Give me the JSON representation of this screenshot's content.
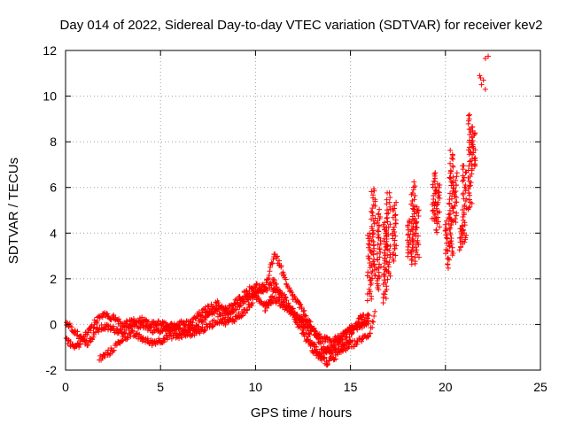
{
  "chart_data": {
    "type": "scatter",
    "title": "Day 014 of 2022, Sidereal Day-to-day VTEC variation (SDTVAR) for receiver kev2",
    "xlabel": "GPS time / hours",
    "ylabel": "SDTVAR / TECUs",
    "xlim": [
      0,
      25
    ],
    "ylim": [
      -2,
      12
    ],
    "x_ticks": [
      0,
      5,
      10,
      15,
      20,
      25
    ],
    "y_ticks": [
      -2,
      0,
      2,
      4,
      6,
      8,
      10,
      12
    ],
    "grid": true,
    "marker": "+",
    "series": [
      {
        "name": "kev2",
        "color": "#ff0000",
        "trace_segments": [
          [
            [
              0.0,
              -0.6
            ],
            [
              0.3,
              -0.9
            ],
            [
              0.6,
              -1.0
            ],
            [
              1.0,
              -0.5
            ],
            [
              1.3,
              -0.2
            ],
            [
              1.7,
              0.2
            ],
            [
              2.0,
              0.4
            ],
            [
              2.5,
              0.3
            ],
            [
              3.0,
              0.0
            ],
            [
              3.5,
              0.1
            ],
            [
              4.0,
              0.2
            ],
            [
              4.5,
              0.0
            ],
            [
              5.0,
              0.1
            ],
            [
              5.5,
              -0.2
            ],
            [
              6.0,
              -0.3
            ],
            [
              6.5,
              -0.2
            ],
            [
              7.0,
              0.0
            ],
            [
              7.5,
              0.4
            ],
            [
              8.0,
              0.6
            ],
            [
              8.5,
              0.4
            ],
            [
              9.0,
              0.8
            ],
            [
              9.5,
              1.1
            ],
            [
              10.0,
              1.4
            ],
            [
              10.5,
              1.5
            ],
            [
              11.0,
              1.9
            ],
            [
              11.3,
              1.2
            ],
            [
              11.7,
              0.7
            ],
            [
              12.0,
              0.4
            ],
            [
              12.5,
              0.2
            ],
            [
              13.0,
              -0.3
            ],
            [
              13.5,
              -0.6
            ],
            [
              14.0,
              -0.8
            ],
            [
              14.5,
              -0.5
            ],
            [
              15.0,
              -0.3
            ],
            [
              15.5,
              -0.1
            ],
            [
              16.0,
              0.2
            ]
          ],
          [
            [
              0.0,
              0.1
            ],
            [
              0.4,
              -0.2
            ],
            [
              0.8,
              -0.6
            ],
            [
              1.2,
              -0.8
            ],
            [
              1.6,
              -0.3
            ],
            [
              2.0,
              -0.1
            ],
            [
              2.5,
              -0.2
            ],
            [
              3.0,
              -0.3
            ],
            [
              3.5,
              -0.1
            ],
            [
              4.0,
              0.0
            ],
            [
              4.5,
              -0.2
            ],
            [
              5.0,
              -0.3
            ],
            [
              5.5,
              -0.1
            ],
            [
              6.0,
              0.1
            ],
            [
              6.5,
              0.0
            ],
            [
              7.0,
              0.4
            ],
            [
              7.5,
              0.7
            ],
            [
              8.0,
              0.9
            ],
            [
              8.5,
              0.6
            ],
            [
              9.0,
              1.0
            ],
            [
              9.5,
              1.4
            ],
            [
              10.0,
              1.7
            ],
            [
              10.5,
              1.6
            ],
            [
              11.0,
              3.1
            ],
            [
              11.3,
              2.6
            ],
            [
              11.7,
              1.6
            ],
            [
              12.0,
              1.2
            ],
            [
              12.5,
              0.6
            ],
            [
              13.0,
              -0.2
            ],
            [
              13.5,
              -1.0
            ],
            [
              14.0,
              -1.2
            ],
            [
              14.5,
              -0.9
            ],
            [
              15.0,
              -0.6
            ],
            [
              15.4,
              0.2
            ],
            [
              15.7,
              0.4
            ]
          ],
          [
            [
              1.8,
              -1.5
            ],
            [
              2.2,
              -1.3
            ],
            [
              2.6,
              -1.0
            ],
            [
              3.0,
              -0.6
            ],
            [
              3.5,
              -0.4
            ],
            [
              4.0,
              -0.6
            ],
            [
              4.5,
              -0.8
            ],
            [
              5.0,
              -0.7
            ],
            [
              5.5,
              -0.5
            ],
            [
              6.0,
              -0.5
            ],
            [
              6.5,
              -0.4
            ],
            [
              7.0,
              -0.3
            ],
            [
              7.5,
              -0.1
            ],
            [
              8.0,
              0.2
            ],
            [
              8.5,
              0.1
            ],
            [
              9.0,
              0.3
            ],
            [
              9.5,
              0.6
            ],
            [
              10.0,
              1.2
            ],
            [
              10.5,
              0.9
            ],
            [
              11.0,
              1.1
            ],
            [
              11.5,
              0.8
            ],
            [
              12.0,
              0.6
            ],
            [
              12.5,
              0.0
            ],
            [
              13.0,
              -0.8
            ],
            [
              13.5,
              -1.5
            ],
            [
              13.8,
              -1.7
            ],
            [
              14.2,
              -1.4
            ],
            [
              14.6,
              -1.1
            ],
            [
              15.0,
              -0.9
            ],
            [
              15.5,
              -0.7
            ],
            [
              16.0,
              -0.4
            ],
            [
              16.3,
              0.6
            ]
          ],
          [
            [
              10.5,
              0.6
            ],
            [
              11.0,
              1.5
            ],
            [
              11.5,
              1.2
            ],
            [
              12.0,
              0.4
            ],
            [
              12.5,
              -0.4
            ],
            [
              13.0,
              -1.1
            ],
            [
              13.3,
              -1.4
            ],
            [
              13.7,
              -1.3
            ],
            [
              14.0,
              -1.0
            ],
            [
              14.5,
              -0.6
            ],
            [
              15.0,
              -0.2
            ],
            [
              15.5,
              0.0
            ],
            [
              16.0,
              0.4
            ]
          ]
        ],
        "clusters": [
          {
            "x": 16.0,
            "y_min": 1.0,
            "y_max": 4.0
          },
          {
            "x": 16.2,
            "y_min": 2.0,
            "y_max": 6.0
          },
          {
            "x": 16.5,
            "y_min": 1.5,
            "y_max": 5.0
          },
          {
            "x": 16.8,
            "y_min": 1.0,
            "y_max": 4.5
          },
          {
            "x": 17.0,
            "y_min": 2.0,
            "y_max": 5.8
          },
          {
            "x": 17.3,
            "y_min": 2.8,
            "y_max": 5.3
          },
          {
            "x": 18.1,
            "y_min": 3.0,
            "y_max": 4.6
          },
          {
            "x": 18.3,
            "y_min": 2.6,
            "y_max": 6.2
          },
          {
            "x": 18.5,
            "y_min": 2.8,
            "y_max": 5.2
          },
          {
            "x": 19.4,
            "y_min": 4.5,
            "y_max": 6.7
          },
          {
            "x": 19.6,
            "y_min": 4.0,
            "y_max": 6.2
          },
          {
            "x": 20.1,
            "y_min": 2.5,
            "y_max": 4.8
          },
          {
            "x": 20.3,
            "y_min": 3.0,
            "y_max": 7.6
          },
          {
            "x": 20.5,
            "y_min": 4.5,
            "y_max": 6.6
          },
          {
            "x": 20.8,
            "y_min": 3.3,
            "y_max": 4.3
          },
          {
            "x": 21.0,
            "y_min": 3.6,
            "y_max": 7.0
          },
          {
            "x": 21.3,
            "y_min": 5.0,
            "y_max": 9.2
          },
          {
            "x": 21.5,
            "y_min": 6.8,
            "y_max": 8.6
          }
        ],
        "isolated_points": [
          [
            21.8,
            10.9
          ],
          [
            22.0,
            10.7
          ],
          [
            21.9,
            10.5
          ],
          [
            22.1,
            10.3
          ],
          [
            22.1,
            11.65
          ],
          [
            22.25,
            11.75
          ],
          [
            21.85,
            10.8
          ]
        ]
      }
    ]
  }
}
